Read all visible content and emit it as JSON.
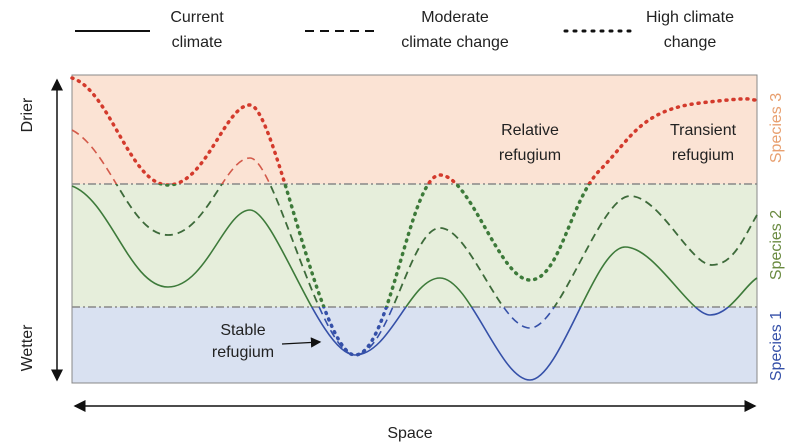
{
  "legend": [
    {
      "lines": [
        "Current",
        "climate"
      ]
    },
    {
      "lines": [
        "Moderate",
        "climate change"
      ]
    },
    {
      "lines": [
        "High climate",
        "change"
      ]
    }
  ],
  "axes": {
    "y_top": "Drier",
    "y_bottom": "Wetter",
    "x": "Space"
  },
  "species": [
    "Species 3",
    "Species 2",
    "Species 1"
  ],
  "annotations": {
    "relative": [
      "Relative",
      "refugium"
    ],
    "transient": [
      "Transient",
      "refugium"
    ],
    "stable": [
      "Stable",
      "refugium"
    ]
  }
}
